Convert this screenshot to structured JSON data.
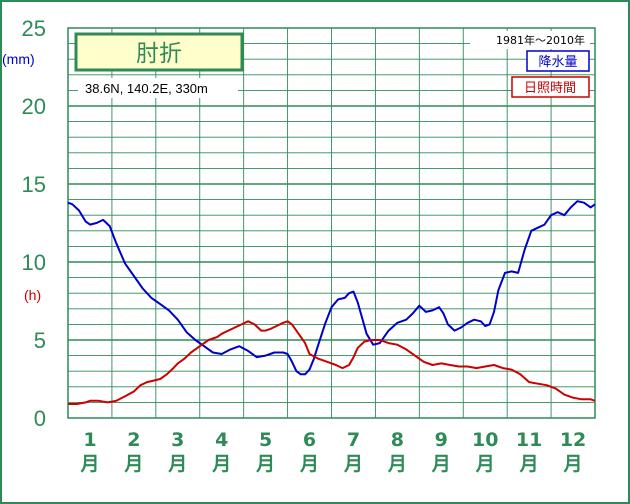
{
  "chart_data": {
    "type": "line",
    "title": "肘折",
    "subtitle": "38.6N, 140.2E, 330m",
    "period": "1981年〜2010年",
    "y_unit_left": "(mm)",
    "y_unit_right": "(h)",
    "ylim": [
      0,
      25
    ],
    "yticks": [
      "0",
      "5",
      "10",
      "15",
      "20",
      "25"
    ],
    "months": [
      {
        "num": "1",
        "unit": "月"
      },
      {
        "num": "2",
        "unit": "月"
      },
      {
        "num": "3",
        "unit": "月"
      },
      {
        "num": "4",
        "unit": "月"
      },
      {
        "num": "5",
        "unit": "月"
      },
      {
        "num": "6",
        "unit": "月"
      },
      {
        "num": "7",
        "unit": "月"
      },
      {
        "num": "8",
        "unit": "月"
      },
      {
        "num": "9",
        "unit": "月"
      },
      {
        "num": "10",
        "unit": "月"
      },
      {
        "num": "11",
        "unit": "月"
      },
      {
        "num": "12",
        "unit": "月"
      }
    ],
    "xlim": [
      0.5,
      12.5
    ],
    "grid": true,
    "legend_position": "top-right",
    "series": [
      {
        "name": "降水量",
        "color": "#0000cc",
        "x": [
          0.5,
          0.6,
          0.75,
          0.9,
          1.0,
          1.15,
          1.3,
          1.45,
          1.6,
          1.8,
          2.0,
          2.2,
          2.4,
          2.6,
          2.8,
          3.0,
          3.2,
          3.4,
          3.6,
          3.8,
          4.0,
          4.2,
          4.4,
          4.6,
          4.8,
          5.0,
          5.2,
          5.3,
          5.4,
          5.5,
          5.6,
          5.7,
          5.8,
          5.9,
          6.0,
          6.1,
          6.2,
          6.35,
          6.5,
          6.65,
          6.8,
          6.9,
          7.0,
          7.1,
          7.2,
          7.3,
          7.45,
          7.6,
          7.8,
          8.0,
          8.2,
          8.35,
          8.5,
          8.65,
          8.8,
          8.95,
          9.05,
          9.15,
          9.3,
          9.45,
          9.6,
          9.75,
          9.9,
          10.0,
          10.1,
          10.2,
          10.3,
          10.45,
          10.6,
          10.75,
          10.9,
          11.05,
          11.2,
          11.35,
          11.5,
          11.65,
          11.8,
          11.95,
          12.1,
          12.25,
          12.4,
          12.5
        ],
        "values": [
          13.8,
          13.7,
          13.3,
          12.6,
          12.4,
          12.5,
          12.7,
          12.3,
          11.2,
          9.9,
          9.1,
          8.3,
          7.7,
          7.3,
          6.9,
          6.3,
          5.5,
          5.0,
          4.6,
          4.2,
          4.1,
          4.4,
          4.6,
          4.3,
          3.9,
          4.0,
          4.2,
          4.2,
          4.2,
          4.1,
          3.6,
          3.0,
          2.8,
          2.8,
          3.1,
          3.8,
          4.7,
          6.0,
          7.1,
          7.6,
          7.7,
          8.0,
          8.1,
          7.4,
          6.4,
          5.4,
          4.7,
          4.8,
          5.6,
          6.1,
          6.3,
          6.7,
          7.2,
          6.8,
          6.9,
          7.1,
          6.7,
          6.0,
          5.6,
          5.8,
          6.1,
          6.3,
          6.2,
          5.9,
          6.0,
          6.8,
          8.2,
          9.3,
          9.4,
          9.3,
          10.8,
          12.0,
          12.2,
          12.4,
          13.0,
          13.2,
          13.0,
          13.5,
          13.9,
          13.8,
          13.5,
          13.7
        ]
      },
      {
        "name": "日照時間",
        "color": "#cc0000",
        "x": [
          0.5,
          0.7,
          0.9,
          1.0,
          1.2,
          1.4,
          1.6,
          1.8,
          2.0,
          2.15,
          2.3,
          2.45,
          2.6,
          2.75,
          2.9,
          3.0,
          3.15,
          3.3,
          3.5,
          3.7,
          3.9,
          4.0,
          4.15,
          4.3,
          4.45,
          4.6,
          4.75,
          4.9,
          5.0,
          5.1,
          5.25,
          5.4,
          5.5,
          5.6,
          5.75,
          5.9,
          6.0,
          6.2,
          6.4,
          6.6,
          6.75,
          6.9,
          7.0,
          7.1,
          7.25,
          7.4,
          7.6,
          7.8,
          8.0,
          8.2,
          8.4,
          8.6,
          8.8,
          9.0,
          9.2,
          9.4,
          9.6,
          9.8,
          10.0,
          10.2,
          10.4,
          10.6,
          10.8,
          11.0,
          11.2,
          11.4,
          11.6,
          11.8,
          12.0,
          12.2,
          12.4,
          12.5
        ],
        "values": [
          0.9,
          0.9,
          1.0,
          1.1,
          1.1,
          1.0,
          1.1,
          1.4,
          1.7,
          2.1,
          2.3,
          2.4,
          2.5,
          2.8,
          3.2,
          3.5,
          3.8,
          4.2,
          4.6,
          5.0,
          5.2,
          5.4,
          5.6,
          5.8,
          6.0,
          6.2,
          6.0,
          5.6,
          5.6,
          5.7,
          5.9,
          6.1,
          6.2,
          6.0,
          5.4,
          4.8,
          4.1,
          3.8,
          3.6,
          3.4,
          3.2,
          3.4,
          3.9,
          4.5,
          4.9,
          5.0,
          5.0,
          4.8,
          4.7,
          4.4,
          4.0,
          3.6,
          3.4,
          3.5,
          3.4,
          3.3,
          3.3,
          3.2,
          3.3,
          3.4,
          3.2,
          3.1,
          2.8,
          2.3,
          2.2,
          2.1,
          1.9,
          1.5,
          1.3,
          1.2,
          1.2,
          1.1
        ]
      }
    ]
  }
}
